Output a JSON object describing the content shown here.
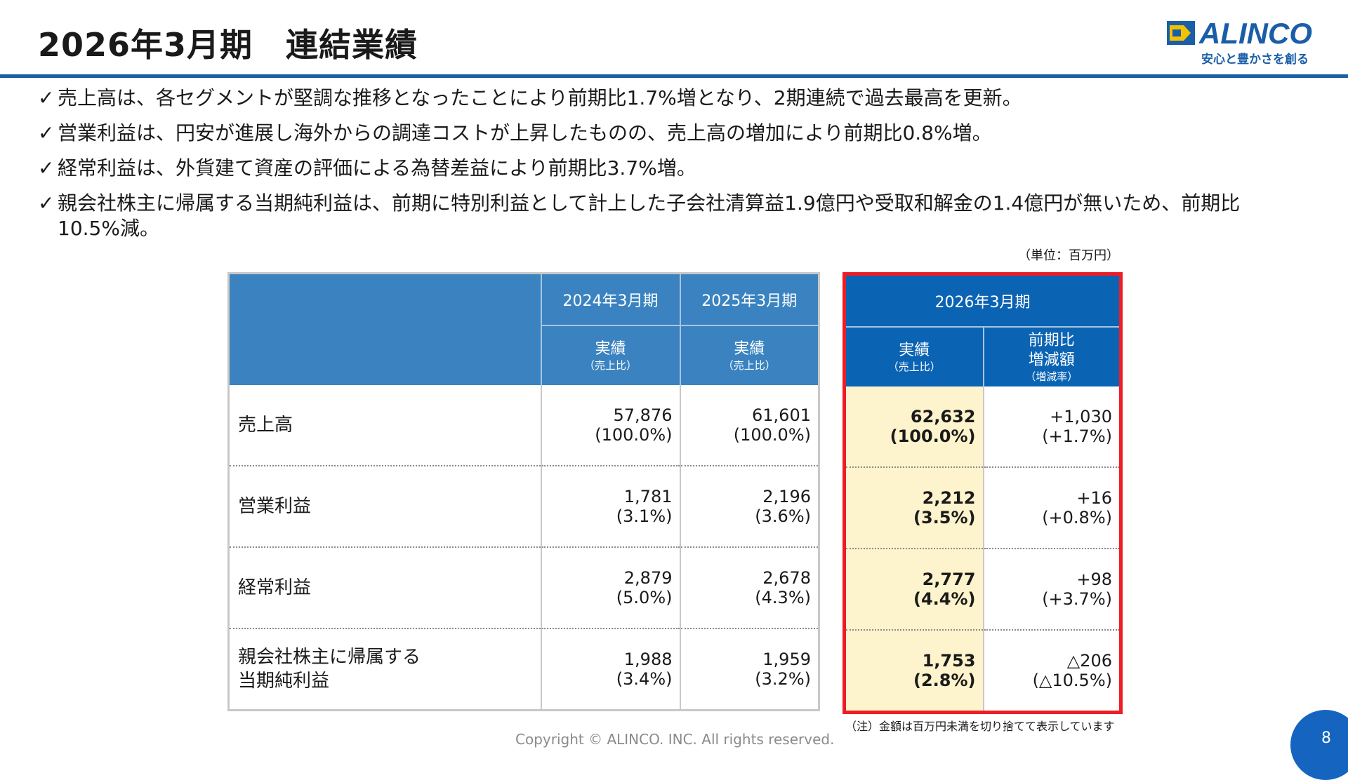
{
  "header": {
    "title": "2026年3月期　連結業績",
    "logo_text": "ALINCO",
    "logo_tagline": "安心と豊かさを創る",
    "accent_color": "#1a5ea8"
  },
  "bullets": [
    {
      "check": "✓",
      "text": "売上高は、各セグメントが堅調な推移となったことにより前期比1.7%増となり、2期連続で過去最高を更新。"
    },
    {
      "check": "✓",
      "text": "営業利益は、円安が進展し海外からの調達コストが上昇したものの、売上高の増加により前期比0.8%増。"
    },
    {
      "check": "✓",
      "text": "経常利益は、外貨建て資産の評価による為替差益により前期比3.7%増。"
    },
    {
      "check": "✓",
      "text": "親会社株主に帰属する当期純利益は、前期に特別利益として計上した子会社清算益1.9億円や受取和解金の1.4億円が無いため、前期比10.5%減。"
    }
  ],
  "unit": "（単位：百万円）",
  "table": {
    "col_2024": "2024年3月期",
    "col_2025": "2025年3月期",
    "col_2026": "2026年3月期",
    "actual_label": "実績",
    "actual_sub": "（売上比）",
    "change_label1": "前期比",
    "change_label2": "増減額",
    "change_sub": "（増減率）",
    "rows": [
      {
        "label": "売上高",
        "label2": "",
        "v2024": "57,876",
        "r2024": "(100.0%)",
        "v2025": "61,601",
        "r2025": "(100.0%)",
        "v2026": "62,632",
        "r2026": "(100.0%)",
        "chg": "+1,030",
        "chgr": "(+1.7%)"
      },
      {
        "label": "営業利益",
        "label2": "",
        "v2024": "1,781",
        "r2024": "(3.1%)",
        "v2025": "2,196",
        "r2025": "(3.6%)",
        "v2026": "2,212",
        "r2026": "(3.5%)",
        "chg": "+16",
        "chgr": "(+0.8%)"
      },
      {
        "label": "経常利益",
        "label2": "",
        "v2024": "2,879",
        "r2024": "(5.0%)",
        "v2025": "2,678",
        "r2025": "(4.3%)",
        "v2026": "2,777",
        "r2026": "(4.4%)",
        "chg": "+98",
        "chgr": "(+3.7%)"
      },
      {
        "label": "親会社株主に帰属する",
        "label2": "当期純利益",
        "v2024": "1,988",
        "r2024": "(3.4%)",
        "v2025": "1,959",
        "r2025": "(3.2%)",
        "v2026": "1,753",
        "r2026": "(2.8%)",
        "chg": "△206",
        "chgr": "(△10.5%)"
      }
    ]
  },
  "note": "（注）金額は百万円未満を切り捨てて表示しています",
  "footer": {
    "copyright": "Copyright © ALINCO. INC. All rights reserved.",
    "page_number": "8"
  }
}
